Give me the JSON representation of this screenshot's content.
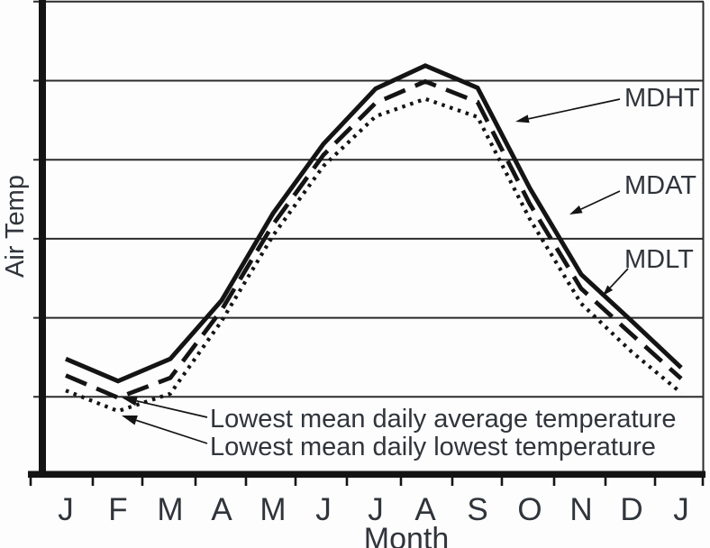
{
  "chart_data": {
    "type": "line",
    "title": "",
    "xlabel": "Month",
    "ylabel": "Air Temp",
    "categories": [
      "J",
      "F",
      "M",
      "A",
      "M",
      "J",
      "J",
      "A",
      "S",
      "O",
      "N",
      "D",
      "J"
    ],
    "y_axis": {
      "tick_labels": [],
      "unit": "relative (unlabeled axis); 1 unit = one gridline spacing, 0 = x-axis",
      "ylim": [
        0,
        6
      ],
      "gridlines_at": [
        1,
        2,
        3,
        4,
        5,
        6
      ]
    },
    "grid": "horizontal-only",
    "series": [
      {
        "name": "MDHT",
        "line_style": "solid",
        "values": [
          1.48,
          1.2,
          1.48,
          2.22,
          3.32,
          4.2,
          4.9,
          5.19,
          4.91,
          3.64,
          2.55,
          1.96,
          1.37
        ]
      },
      {
        "name": "MDAT",
        "line_style": "dashed",
        "values": [
          1.27,
          0.99,
          1.24,
          2.1,
          3.18,
          4.06,
          4.72,
          4.99,
          4.73,
          3.44,
          2.37,
          1.79,
          1.23
        ]
      },
      {
        "name": "MDLT",
        "line_style": "dotted",
        "values": [
          1.08,
          0.82,
          1.04,
          1.96,
          3.04,
          3.92,
          4.55,
          4.77,
          4.54,
          3.25,
          2.18,
          1.57,
          1.05
        ]
      }
    ],
    "series_labels": [
      "MDHT",
      "MDAT",
      "MDLT"
    ],
    "annotations": [
      {
        "text": "Lowest mean daily average temperature",
        "points_to": {
          "series": "MDAT",
          "category_index": 1
        }
      },
      {
        "text": "Lowest mean daily lowest temperature",
        "points_to": {
          "series": "MDLT",
          "category_index": 1
        }
      }
    ],
    "legend_position": "labels-with-arrows-right"
  }
}
